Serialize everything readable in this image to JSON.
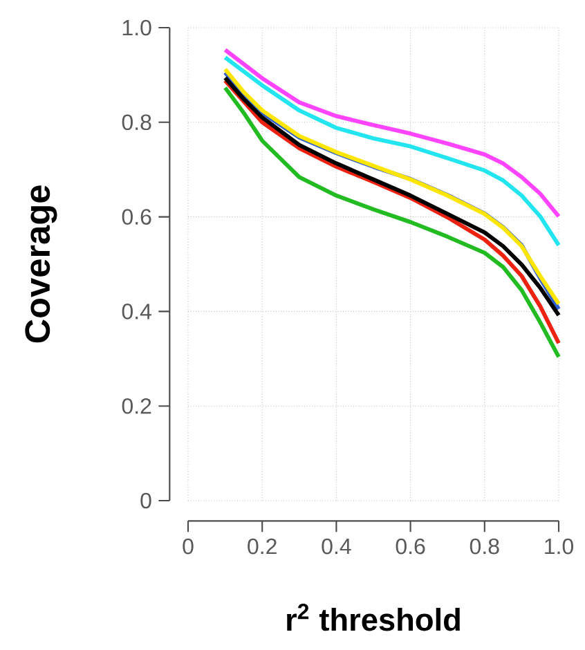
{
  "chart_data": {
    "type": "line",
    "xlabel": "r$^{2}$ threshold",
    "ylabel": "Coverage",
    "xlim": [
      0,
      1
    ],
    "ylim": [
      0,
      1
    ],
    "xticks": [
      0,
      0.2,
      0.4,
      0.6,
      0.8,
      {
        "value": 1,
        "label": "1.0"
      }
    ],
    "yticks": [
      0,
      0.2,
      0.4,
      0.6,
      0.8,
      {
        "value": 1,
        "label": "1.0"
      }
    ],
    "grid": true,
    "marker": "none",
    "line_style": "solid",
    "series": [
      {
        "color": "#ff44ff",
        "x": [
          0.1,
          0.2,
          0.3,
          0.4,
          0.5,
          0.6,
          0.7,
          0.8,
          0.85,
          0.9,
          0.95,
          1.0
        ],
        "values": [
          0.953,
          0.893,
          0.842,
          0.813,
          0.794,
          0.776,
          0.755,
          0.732,
          0.713,
          0.684,
          0.649,
          0.601
        ]
      },
      {
        "color": "#22e5f0",
        "x": [
          0.1,
          0.2,
          0.3,
          0.4,
          0.5,
          0.6,
          0.7,
          0.8,
          0.85,
          0.9,
          0.95,
          1.0
        ],
        "values": [
          0.937,
          0.878,
          0.825,
          0.788,
          0.766,
          0.749,
          0.724,
          0.698,
          0.677,
          0.645,
          0.601,
          0.54
        ]
      },
      {
        "color": "#3060d0",
        "x": [
          0.1,
          0.15,
          0.2,
          0.3,
          0.4,
          0.5,
          0.6,
          0.7,
          0.8,
          0.85,
          0.9,
          0.95,
          1.0
        ],
        "values": [
          0.905,
          0.858,
          0.82,
          0.768,
          0.735,
          0.706,
          0.68,
          0.646,
          0.607,
          0.578,
          0.54,
          0.47,
          0.405
        ]
      },
      {
        "color": "#ffe600",
        "x": [
          0.1,
          0.15,
          0.2,
          0.3,
          0.4,
          0.5,
          0.6,
          0.7,
          0.8,
          0.85,
          0.9,
          0.95,
          1.0
        ],
        "values": [
          0.912,
          0.864,
          0.825,
          0.771,
          0.737,
          0.708,
          0.679,
          0.645,
          0.606,
          0.577,
          0.538,
          0.475,
          0.416
        ]
      },
      {
        "color": "#ee2211",
        "x": [
          0.1,
          0.2,
          0.3,
          0.4,
          0.5,
          0.6,
          0.7,
          0.8,
          0.85,
          0.9,
          0.95,
          1.0
        ],
        "values": [
          0.888,
          0.8,
          0.745,
          0.706,
          0.674,
          0.64,
          0.599,
          0.552,
          0.518,
          0.475,
          0.411,
          0.333
        ]
      },
      {
        "color": "#000000",
        "x": [
          0.1,
          0.15,
          0.2,
          0.3,
          0.4,
          0.5,
          0.6,
          0.7,
          0.8,
          0.85,
          0.9,
          0.95,
          1.0
        ],
        "values": [
          0.894,
          0.849,
          0.81,
          0.752,
          0.713,
          0.679,
          0.645,
          0.606,
          0.567,
          0.538,
          0.499,
          0.45,
          0.392
        ]
      },
      {
        "color": "#22bb22",
        "x": [
          0.1,
          0.15,
          0.2,
          0.3,
          0.4,
          0.5,
          0.6,
          0.7,
          0.8,
          0.85,
          0.9,
          0.95,
          1.0
        ],
        "values": [
          0.873,
          0.82,
          0.761,
          0.684,
          0.645,
          0.616,
          0.589,
          0.558,
          0.524,
          0.494,
          0.445,
          0.377,
          0.304
        ]
      }
    ]
  }
}
